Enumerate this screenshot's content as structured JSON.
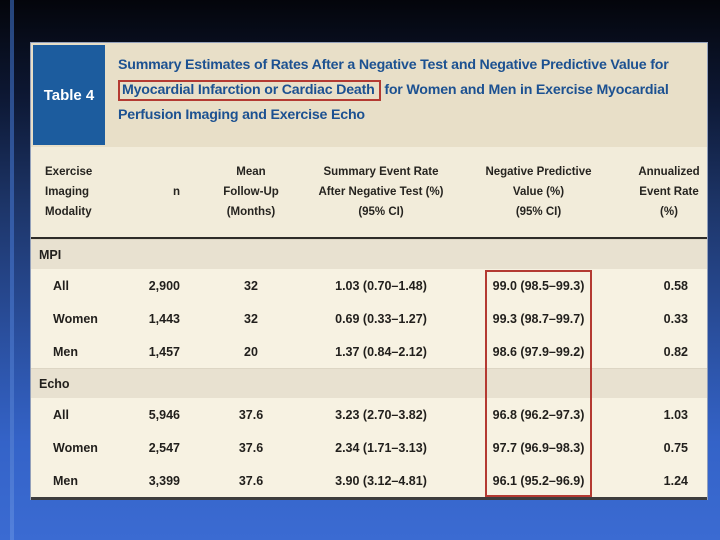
{
  "slide": {
    "accent_color": "#b43a32",
    "background_top": "#04050b",
    "background_bottom": "#3b6bd2"
  },
  "table": {
    "label": "Table 4",
    "title": {
      "line1": "Summary Estimates of Rates After a Negative Test and Negative Predictive Value for",
      "highlighted": "Myocardial Infarction or Cardiac Death",
      "line2_rest": " for Women and Men in Exercise Myocardial",
      "line3": "Perfusion Imaging and Exercise Echo"
    },
    "columns": [
      "Exercise\nImaging\nModality",
      "n",
      "Mean\nFollow-Up\n(Months)",
      "Summary Event Rate\nAfter Negative Test (%)\n(95% CI)",
      "Negative Predictive\nValue (%)\n(95% CI)",
      "Annualized\nEvent Rate\n(%)"
    ],
    "sections": [
      {
        "name": "MPI",
        "rows": [
          {
            "label": "All",
            "n": "2,900",
            "followup": "32",
            "event_rate": "1.03 (0.70–1.48)",
            "npv": "99.0 (98.5–99.3)",
            "annualized": "0.58"
          },
          {
            "label": "Women",
            "n": "1,443",
            "followup": "32",
            "event_rate": "0.69 (0.33–1.27)",
            "npv": "99.3 (98.7–99.7)",
            "annualized": "0.33"
          },
          {
            "label": "Men",
            "n": "1,457",
            "followup": "20",
            "event_rate": "1.37 (0.84–2.12)",
            "npv": "98.6 (97.9–99.2)",
            "annualized": "0.82"
          }
        ]
      },
      {
        "name": "Echo",
        "rows": [
          {
            "label": "All",
            "n": "5,946",
            "followup": "37.6",
            "event_rate": "3.23 (2.70–3.82)",
            "npv": "96.8 (96.2–97.3)",
            "annualized": "1.03"
          },
          {
            "label": "Women",
            "n": "2,547",
            "followup": "37.6",
            "event_rate": "2.34 (1.71–3.13)",
            "npv": "97.7 (96.9–98.3)",
            "annualized": "0.75"
          },
          {
            "label": "Men",
            "n": "3,399",
            "followup": "37.6",
            "event_rate": "3.90 (3.12–4.81)",
            "npv": "96.1 (95.2–96.9)",
            "annualized": "1.24"
          }
        ]
      }
    ]
  }
}
